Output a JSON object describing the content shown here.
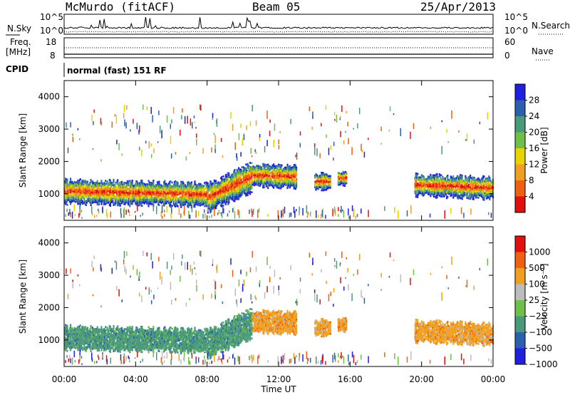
{
  "header": {
    "station": "McMurdo (fitACF)",
    "beam": "Beam 05",
    "date": "25/Apr/2013"
  },
  "top_strip": {
    "nsky_label": "N.Sky",
    "nsearch_label": "N.Search",
    "left_ticks": [
      "10^5",
      "10^0"
    ],
    "right_ticks": [
      "10^5",
      "10^0"
    ],
    "freq_label_1": "Freq.",
    "freq_label_2": "[MHz]",
    "freq_ticks": [
      "18",
      "8"
    ],
    "nave_label": "Nave",
    "nave_ticks": [
      "60",
      "0"
    ],
    "cpid_label": "CPID",
    "cpid_text": "normal (fast) 151 RF"
  },
  "colors": {
    "power_scale": [
      "#1f1fe0",
      "#2b5fb0",
      "#4a9a7a",
      "#6fbf4a",
      "#e7d400",
      "#f0a020",
      "#f06010",
      "#e01010"
    ],
    "velocity_scale": [
      "#e01010",
      "#f06010",
      "#f0a020",
      "#bdbdbd",
      "#6fbf4a",
      "#4a9a7a",
      "#2b5fb0",
      "#1f1fe0"
    ]
  },
  "chart_data": [
    {
      "type": "heatmap",
      "name": "power",
      "ylabel": "Slant Range [km]",
      "xlabel": "Time UT",
      "x_ticks": [
        "00:00",
        "04:00",
        "08:00",
        "12:00",
        "16:00",
        "20:00",
        "00:00"
      ],
      "xlim": [
        0,
        24
      ],
      "ylim": [
        180,
        4500
      ],
      "y_ticks": [
        1000,
        2000,
        3000,
        4000
      ],
      "colorbar_label": "Power [dB]",
      "colorbar_ticks": [
        "28",
        "24",
        "20",
        "16",
        "12",
        "8",
        "4"
      ],
      "colorbar_range": [
        0,
        32
      ]
    },
    {
      "type": "heatmap",
      "name": "velocity",
      "ylabel": "Slant Range [km]",
      "xlabel": "Time UT",
      "x_ticks": [
        "00:00",
        "04:00",
        "08:00",
        "12:00",
        "16:00",
        "20:00",
        "00:00"
      ],
      "xlim": [
        0,
        24
      ],
      "ylim": [
        180,
        4500
      ],
      "y_ticks": [
        1000,
        2000,
        3000,
        4000
      ],
      "colorbar_label": "Velocity [m s⁻¹]",
      "colorbar_ticks": [
        "1000",
        "500",
        "100",
        "25",
        "−25",
        "−100",
        "−500",
        "−1000"
      ]
    }
  ]
}
